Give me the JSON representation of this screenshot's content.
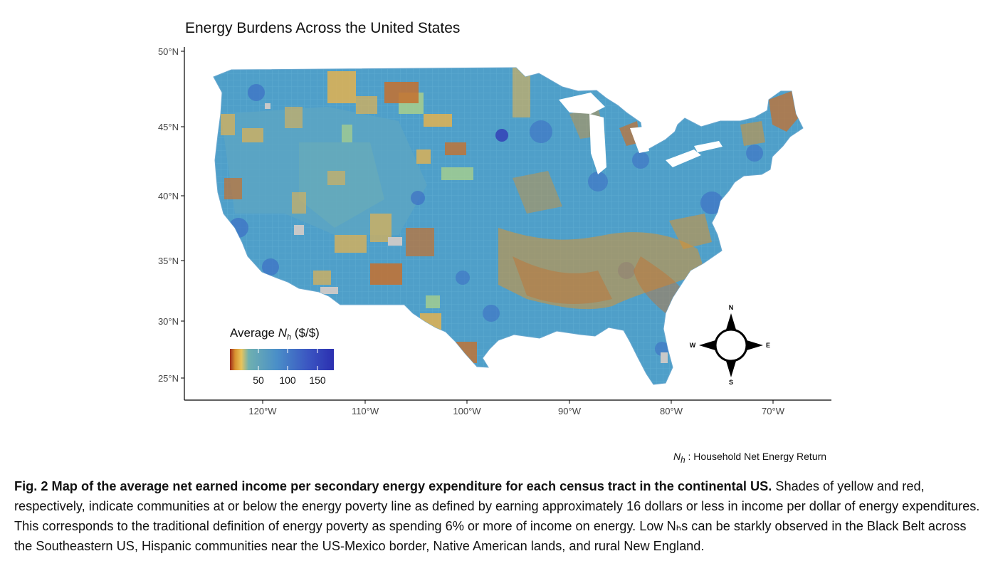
{
  "figure": {
    "title": "Energy Burdens Across the United States",
    "lat_ticks": [
      "50°N",
      "45°N",
      "40°N",
      "35°N",
      "30°N",
      "25°N"
    ],
    "lon_ticks": [
      "120°W",
      "110°W",
      "100°W",
      "90°W",
      "80°W",
      "70°W"
    ],
    "legend": {
      "title_prefix": "Average ",
      "title_var": "N",
      "title_sub": "h",
      "title_suffix": " ($/$)",
      "ticks": [
        "50",
        "100",
        "150"
      ],
      "colors": [
        "#9e2a1a",
        "#d8912f",
        "#e9c45a",
        "#6fb0b0",
        "#4a8fc8",
        "#3b56c2",
        "#2b2fb0"
      ]
    },
    "compass": {
      "n": "N",
      "s": "S",
      "e": "E",
      "w": "W"
    },
    "colors": {
      "base": "#4f9fc9",
      "dense": "#3f78c6",
      "poverty_yellow": "#e2b250",
      "poverty_red": "#c6702e",
      "light_green": "#a8cf8c",
      "no_data": "#c8c8c8"
    }
  },
  "source_note": {
    "var": "N",
    "sub": "h",
    "text": " : Household Net Energy Return"
  },
  "caption": {
    "bold": "Fig. 2 Map of the average net earned income per secondary energy expenditure for each census tract in the continental US.",
    "text": " Shades of yellow and red, respectively, indicate communities at or below the energy poverty line as defined by earning approximately 16 dollars or less in income per dollar of energy expenditures. This corresponds to the traditional definition of energy poverty as spending 6% or more of income on energy. Low Nₕs can be starkly observed in the Black Belt across the Southeastern US, Hispanic communities near the US-Mexico border, Native American lands, and rural New England."
  }
}
